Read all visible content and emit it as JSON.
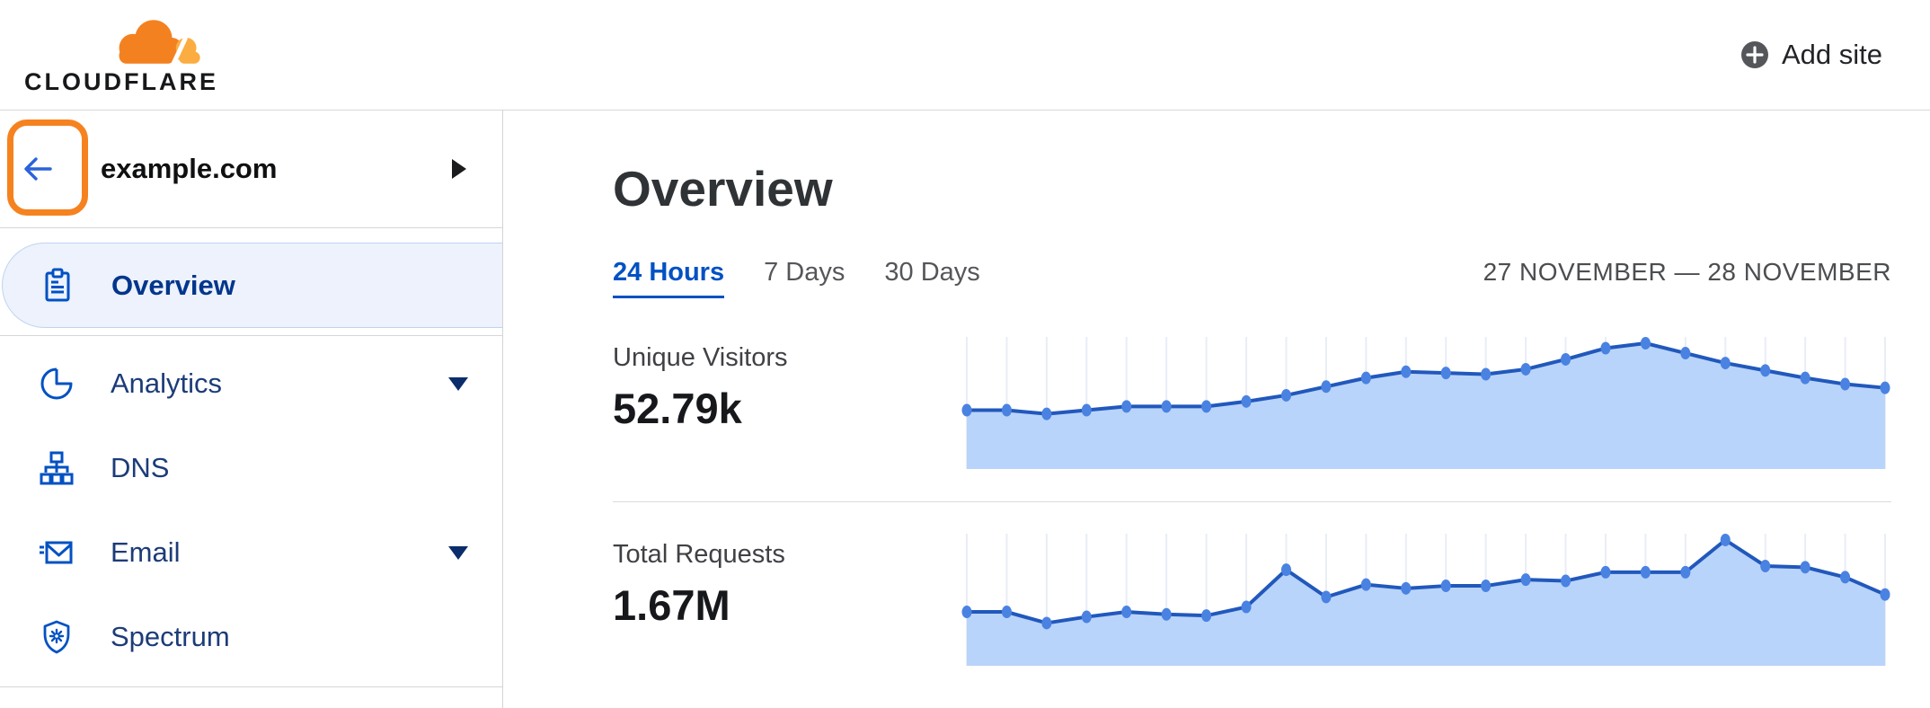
{
  "header": {
    "logo_text": "CLOUDFLARE",
    "add_site_label": "Add site"
  },
  "sidebar": {
    "site_name": "example.com",
    "items": [
      {
        "label": "Overview",
        "icon": "clipboard-icon",
        "selected": true,
        "has_caret": false
      },
      {
        "label": "Analytics",
        "icon": "pie-chart-icon",
        "selected": false,
        "has_caret": true
      },
      {
        "label": "DNS",
        "icon": "sitemap-icon",
        "selected": false,
        "has_caret": false
      },
      {
        "label": "Email",
        "icon": "envelope-icon",
        "selected": false,
        "has_caret": true
      },
      {
        "label": "Spectrum",
        "icon": "shield-icon",
        "selected": false,
        "has_caret": false
      }
    ]
  },
  "main": {
    "title": "Overview",
    "tabs": [
      {
        "label": "24 Hours",
        "active": true
      },
      {
        "label": "7 Days",
        "active": false
      },
      {
        "label": "30 Days",
        "active": false
      }
    ],
    "date_range": "27 NOVEMBER — 28 NOVEMBER",
    "metrics": [
      {
        "label": "Unique Visitors",
        "value": "52.79k"
      },
      {
        "label": "Total Requests",
        "value": "1.67M"
      }
    ]
  },
  "colors": {
    "accent_orange": "#f6821f",
    "logo_orange": "#f48120",
    "logo_orange_light": "#fbad41",
    "link_blue": "#0051c3",
    "nav_text_blue": "#1c3c78",
    "nav_selected_blue": "#00368c",
    "nav_selected_bg": "#edf2fc",
    "chart_line": "#2158bc",
    "chart_dot": "#4a82e2",
    "chart_fill": "#b9d4fa",
    "chart_grid": "#e9edf5",
    "divider_gray": "#d6d7d9"
  },
  "chart_data": [
    {
      "type": "area",
      "title": "Unique Visitors sparkline",
      "total_label": "52.79k",
      "x_range": "27 November – 28 November, hourly (24 Hours view)",
      "ylabel": "",
      "values_unit": "percent of series max (no y-axis shown in UI)",
      "values": [
        46,
        46,
        43,
        46,
        49,
        49,
        49,
        53,
        58,
        65,
        72,
        77,
        76,
        75,
        79,
        87,
        96,
        100,
        92,
        84,
        78,
        72,
        67,
        64
      ],
      "grid": "vertical gridlines at each point",
      "legend": "none"
    },
    {
      "type": "area",
      "title": "Total Requests sparkline",
      "total_label": "1.67M",
      "x_range": "27 November – 28 November, hourly (24 Hours view)",
      "ylabel": "",
      "values_unit": "percent of series max (no y-axis shown in UI)",
      "values": [
        42,
        42,
        33,
        38,
        42,
        40,
        39,
        46,
        76,
        54,
        64,
        61,
        63,
        63,
        68,
        67,
        74,
        74,
        74,
        100,
        79,
        78,
        70,
        56
      ],
      "grid": "vertical gridlines at each point",
      "legend": "none"
    }
  ]
}
